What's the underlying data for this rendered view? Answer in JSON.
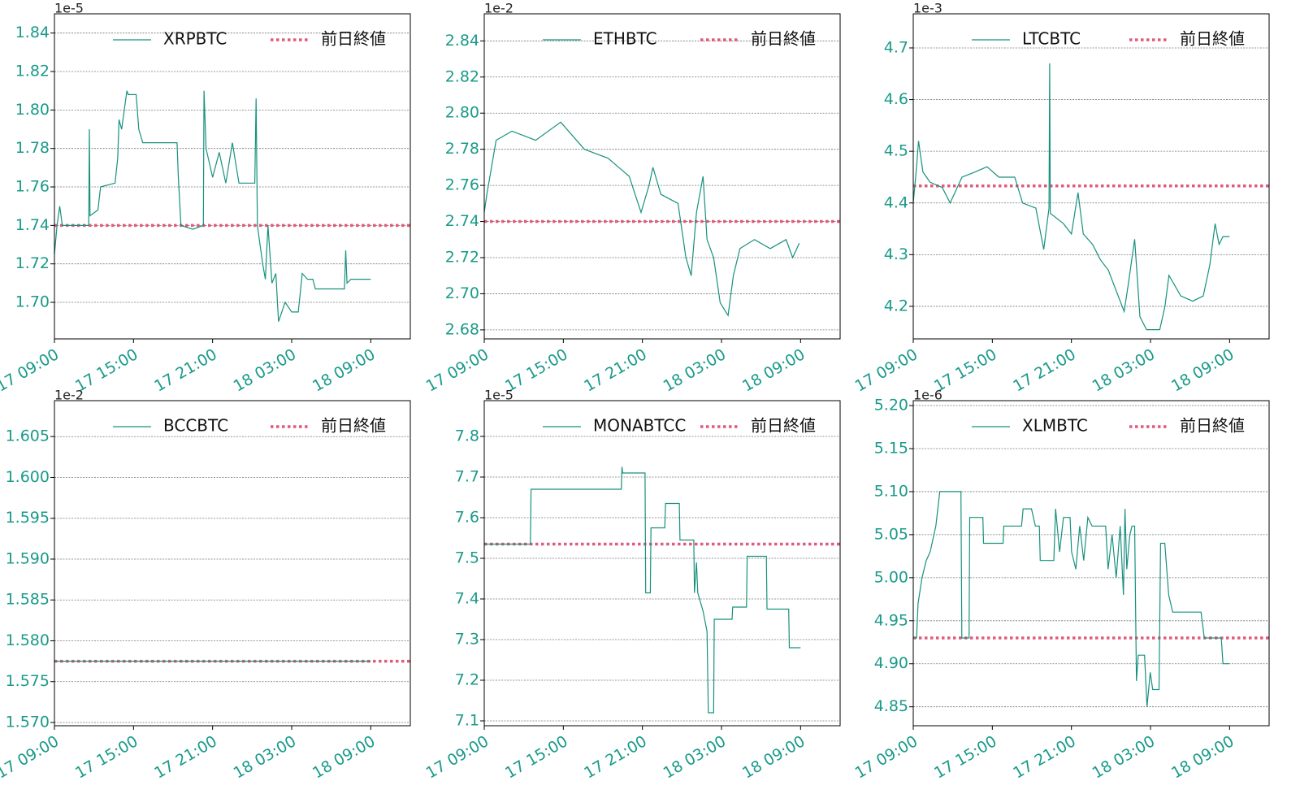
{
  "chart_data": [
    {
      "type": "line",
      "offset_label": "1e-5",
      "legend": "upper center",
      "grid": true,
      "xlim": [
        "17 09:00",
        "18 12:00"
      ],
      "xticks": [
        "17 09:00",
        "17 15:00",
        "17 21:00",
        "18 03:00",
        "18 09:00"
      ],
      "ylim": [
        1.681,
        1.85
      ],
      "yticks": [
        {
          "value": 1.7,
          "label": "1.70"
        },
        1.72,
        1.74,
        1.76,
        1.78,
        {
          "value": 1.8,
          "label": "1.80"
        },
        1.82,
        1.84
      ],
      "reference": {
        "name": "前日終値",
        "color": "#e05a7a",
        "value": 1.74
      },
      "x": [
        "17 09:00",
        "17 09:12",
        "17 09:24",
        "17 09:36",
        "17 11:36",
        "17 11:39",
        "17 11:42",
        "17 12:18",
        "17 12:30",
        "17 13:36",
        "17 13:48",
        "17 13:54",
        "17 14:06",
        "17 14:30",
        "17 14:36",
        "17 15:12",
        "17 15:24",
        "17 15:42",
        "17 18:18",
        "17 18:24",
        "17 18:36",
        "17 19:30",
        "17 20:18",
        "17 20:21",
        "17 20:30",
        "17 21:00",
        "17 21:30",
        "17 22:00",
        "17 22:30",
        "17 23:00",
        "18 00:12",
        "18 00:18",
        "18 00:24",
        "18 00:48",
        "18 01:00",
        "18 01:12",
        "18 01:30",
        "18 01:48",
        "18 02:00",
        "18 02:30",
        "18 03:00",
        "18 03:30",
        "18 03:48",
        "18 04:12",
        "18 04:36",
        "18 04:48",
        "18 07:00",
        "18 07:06",
        "18 07:12",
        "18 07:30",
        "18 09:00"
      ],
      "series": [
        {
          "name": "XRPBTC",
          "color": "#17917e",
          "values": [
            1.725,
            1.74,
            1.75,
            1.74,
            1.74,
            1.79,
            1.745,
            1.748,
            1.76,
            1.762,
            1.775,
            1.795,
            1.79,
            1.81,
            1.808,
            1.808,
            1.79,
            1.783,
            1.783,
            1.765,
            1.74,
            1.738,
            1.74,
            1.81,
            1.78,
            1.765,
            1.778,
            1.762,
            1.783,
            1.762,
            1.762,
            1.806,
            1.74,
            1.72,
            1.712,
            1.74,
            1.71,
            1.715,
            1.69,
            1.7,
            1.695,
            1.695,
            1.715,
            1.712,
            1.712,
            1.707,
            1.707,
            1.727,
            1.71,
            1.712,
            1.712
          ]
        }
      ]
    },
    {
      "type": "line",
      "offset_label": "1e-2",
      "legend": "upper center",
      "grid": true,
      "xlim": [
        "17 09:00",
        "18 12:00"
      ],
      "xticks": [
        "17 09:00",
        "17 15:00",
        "17 21:00",
        "18 03:00",
        "18 09:00"
      ],
      "ylim": [
        2.675,
        2.855
      ],
      "yticks": [
        2.68,
        {
          "value": 2.7,
          "label": "2.70"
        },
        2.72,
        2.74,
        2.76,
        2.78,
        {
          "value": 2.8,
          "label": "2.80"
        },
        2.82,
        2.84
      ],
      "reference": {
        "name": "前日終値",
        "color": "#e05a7a",
        "value": 2.74
      },
      "x": [
        "17 09:00",
        "17 09:12",
        "17 09:54",
        "17 11:06",
        "17 12:54",
        "17 14:48",
        "17 16:36",
        "17 18:24",
        "17 20:00",
        "17 20:54",
        "17 21:30",
        "17 21:48",
        "17 22:24",
        "17 23:42",
        "18 00:18",
        "18 00:42",
        "18 01:06",
        "18 01:36",
        "18 01:54",
        "18 02:24",
        "18 02:54",
        "18 03:30",
        "18 03:54",
        "18 04:24",
        "18 05:30",
        "18 06:42",
        "18 07:54",
        "18 08:24",
        "18 08:54"
      ],
      "series": [
        {
          "name": "ETHBTC",
          "color": "#17917e",
          "values": [
            2.745,
            2.755,
            2.785,
            2.79,
            2.785,
            2.795,
            2.78,
            2.775,
            2.765,
            2.745,
            2.76,
            2.77,
            2.755,
            2.75,
            2.72,
            2.71,
            2.745,
            2.765,
            2.73,
            2.72,
            2.695,
            2.688,
            2.71,
            2.725,
            2.73,
            2.725,
            2.73,
            2.72,
            2.728
          ]
        }
      ]
    },
    {
      "type": "line",
      "offset_label": "1e-3",
      "legend": "upper center",
      "grid": true,
      "xlim": [
        "17 09:00",
        "18 12:00"
      ],
      "xticks": [
        "17 09:00",
        "17 15:00",
        "17 21:00",
        "18 03:00",
        "18 09:00"
      ],
      "ylim": [
        4.137,
        4.766
      ],
      "yticks": [
        4.2,
        4.3,
        4.4,
        4.5,
        4.6,
        4.7
      ],
      "reference": {
        "name": "前日終値",
        "color": "#e05a7a",
        "value": 4.433
      },
      "x": [
        "17 09:00",
        "17 09:15",
        "17 09:24",
        "17 09:44",
        "17 10:17",
        "17 11:12",
        "17 11:48",
        "17 12:42",
        "17 13:42",
        "17 14:36",
        "17 15:30",
        "17 16:42",
        "17 17:18",
        "17 18:18",
        "17 18:54",
        "17 19:18",
        "17 19:21",
        "17 19:24",
        "17 20:24",
        "17 21:00",
        "17 21:30",
        "17 21:54",
        "17 22:36",
        "17 23:12",
        "17 23:48",
        "18 00:24",
        "18 01:00",
        "18 01:18",
        "18 01:48",
        "18 02:12",
        "18 02:42",
        "18 03:42",
        "18 04:06",
        "18 04:24",
        "18 05:18",
        "18 06:12",
        "18 07:00",
        "18 07:30",
        "18 07:54",
        "18 08:12",
        "18 08:30",
        "18 09:00"
      ],
      "series": [
        {
          "name": "LTCBTC",
          "color": "#17917e",
          "values": [
            4.4,
            4.47,
            4.52,
            4.46,
            4.44,
            4.43,
            4.4,
            4.45,
            4.46,
            4.47,
            4.45,
            4.45,
            4.4,
            4.39,
            4.31,
            4.39,
            4.67,
            4.38,
            4.36,
            4.34,
            4.42,
            4.34,
            4.32,
            4.29,
            4.27,
            4.23,
            4.19,
            4.24,
            4.33,
            4.18,
            4.155,
            4.155,
            4.2,
            4.26,
            4.22,
            4.21,
            4.22,
            4.28,
            4.36,
            4.32,
            4.335,
            4.335
          ]
        }
      ]
    },
    {
      "type": "line",
      "offset_label": "1e-2",
      "legend": "upper center",
      "grid": true,
      "xlim": [
        "17 09:00",
        "18 12:00"
      ],
      "xticks": [
        "17 09:00",
        "17 15:00",
        "17 21:00",
        "18 03:00",
        "18 09:00"
      ],
      "ylim": [
        1.5696,
        1.6094
      ],
      "yticks": [
        {
          "value": 1.57,
          "label": "1.570"
        },
        1.575,
        {
          "value": 1.58,
          "label": "1.580"
        },
        1.585,
        {
          "value": 1.59,
          "label": "1.590"
        },
        1.595,
        {
          "value": 1.6,
          "label": "1.600"
        },
        1.605
      ],
      "reference": {
        "name": "前日終値",
        "color": "#e05a7a",
        "value": 1.5775
      },
      "x": [
        "17 09:00",
        "18 09:00"
      ],
      "series": [
        {
          "name": "BCCBTC",
          "color": "#17917e",
          "values": [
            1.5775,
            1.5775
          ]
        }
      ]
    },
    {
      "type": "line",
      "offset_label": "1e-5",
      "legend": "upper center",
      "grid": true,
      "xlim": [
        "17 09:00",
        "18 12:00"
      ],
      "xticks": [
        "17 09:00",
        "17 15:00",
        "17 21:00",
        "18 03:00",
        "18 09:00"
      ],
      "ylim": [
        7.088,
        7.888
      ],
      "yticks": [
        7.1,
        7.2,
        7.3,
        7.4,
        7.5,
        7.6,
        7.7,
        7.8
      ],
      "reference": {
        "name": "前日終値",
        "color": "#e05a7a",
        "value": 7.535
      },
      "x": [
        "17 09:00",
        "17 12:30",
        "17 12:33",
        "17 19:24",
        "17 19:27",
        "17 19:30",
        "17 21:12",
        "17 21:15",
        "17 21:36",
        "17 21:39",
        "17 22:42",
        "17 22:45",
        "17 23:48",
        "17 23:51",
        "18 00:54",
        "18 00:57",
        "18 01:06",
        "18 01:12",
        "18 01:36",
        "18 01:54",
        "18 02:00",
        "18 02:24",
        "18 02:27",
        "18 03:48",
        "18 03:51",
        "18 04:54",
        "18 04:57",
        "18 06:24",
        "18 06:27",
        "18 08:06",
        "18 08:09",
        "18 09:00"
      ],
      "series": [
        {
          "name": "MONABTCC",
          "color": "#17917e",
          "values": [
            7.535,
            7.535,
            7.67,
            7.67,
            7.725,
            7.71,
            7.71,
            7.415,
            7.415,
            7.575,
            7.575,
            7.635,
            7.635,
            7.545,
            7.545,
            7.415,
            7.49,
            7.415,
            7.37,
            7.32,
            7.12,
            7.12,
            7.35,
            7.35,
            7.38,
            7.38,
            7.505,
            7.505,
            7.375,
            7.375,
            7.28,
            7.28
          ]
        }
      ]
    },
    {
      "type": "line",
      "offset_label": "1e-6",
      "legend": "upper center",
      "grid": true,
      "xlim": [
        "17 09:00",
        "18 12:00"
      ],
      "xticks": [
        "17 09:00",
        "17 15:00",
        "17 21:00",
        "18 03:00",
        "18 09:00"
      ],
      "ylim": [
        4.828,
        5.2057
      ],
      "yticks": [
        4.85,
        {
          "value": 4.9,
          "label": "4.90"
        },
        4.95,
        {
          "value": 5,
          "label": "5.00"
        },
        5.05,
        {
          "value": 5.1,
          "label": "5.10"
        },
        5.15,
        {
          "value": 5.2,
          "label": "5.20"
        }
      ],
      "reference": {
        "name": "前日終値",
        "color": "#e05a7a",
        "value": 4.93
      },
      "x": [
        "17 09:00",
        "17 09:15",
        "17 09:22",
        "17 09:40",
        "17 09:59",
        "17 10:17",
        "17 10:43",
        "17 11:01",
        "17 12:37",
        "17 12:41",
        "17 13:14",
        "17 13:17",
        "17 14:17",
        "17 14:20",
        "17 15:49",
        "17 15:52",
        "17 17:13",
        "17 17:20",
        "17 17:58",
        "17 18:16",
        "17 18:34",
        "17 18:38",
        "17 19:40",
        "17 19:48",
        "17 20:06",
        "17 20:24",
        "17 20:54",
        "17 21:01",
        "17 21:20",
        "17 21:38",
        "17 21:56",
        "17 22:15",
        "17 22:34",
        "17 23:36",
        "17 23:47",
        "18 00:05",
        "18 00:24",
        "18 00:42",
        "18 00:57",
        "18 01:04",
        "18 01:12",
        "18 01:26",
        "18 01:36",
        "18 01:48",
        "18 01:56",
        "18 02:04",
        "18 02:33",
        "18 02:44",
        "18 02:59",
        "18 03:10",
        "18 03:39",
        "18 03:46",
        "18 04:05",
        "18 04:23",
        "18 04:41",
        "18 06:50",
        "18 07:05",
        "18 08:22",
        "18 08:30",
        "18 09:00"
      ],
      "series": [
        {
          "name": "XLMBTC",
          "color": "#17917e",
          "values": [
            4.93,
            4.93,
            4.97,
            5.0,
            5.02,
            5.03,
            5.06,
            5.1,
            5.1,
            4.93,
            4.93,
            5.07,
            5.07,
            5.04,
            5.04,
            5.06,
            5.06,
            5.08,
            5.08,
            5.06,
            5.06,
            5.02,
            5.02,
            5.08,
            5.03,
            5.07,
            5.07,
            5.03,
            5.01,
            5.06,
            5.02,
            5.07,
            5.06,
            5.06,
            5.01,
            5.05,
            5.0,
            5.06,
            4.98,
            5.08,
            5.01,
            5.05,
            5.06,
            5.06,
            4.88,
            4.91,
            4.91,
            4.85,
            4.89,
            4.87,
            4.87,
            5.04,
            5.04,
            4.98,
            4.96,
            4.96,
            4.93,
            4.93,
            4.9,
            4.9
          ]
        }
      ]
    }
  ]
}
